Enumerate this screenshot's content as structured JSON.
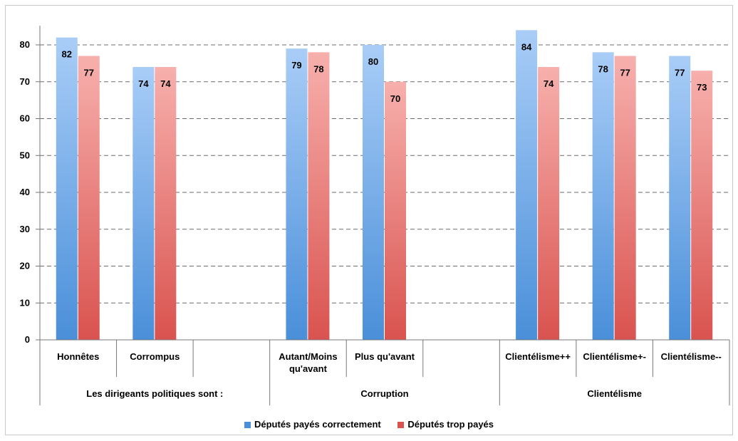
{
  "chart_data": {
    "type": "bar",
    "title": "",
    "xlabel": "",
    "ylabel": "",
    "ylim": [
      0,
      85
    ],
    "yticks": [
      0,
      10,
      20,
      30,
      40,
      50,
      60,
      70,
      80
    ],
    "grid": true,
    "legend_position": "bottom",
    "groups": [
      {
        "label": "Les dirigeants politiques sont :",
        "categories": [
          "Honnêtes",
          "Corrompus",
          ""
        ]
      },
      {
        "label": "Corruption",
        "categories": [
          "Autant/Moins qu'avant",
          "Plus qu'avant",
          ""
        ]
      },
      {
        "label": "Clientélisme",
        "categories": [
          "Clientélisme++",
          "Clientélisme+-",
          "Clientélisme--"
        ]
      }
    ],
    "categories": [
      "Honnêtes",
      "Corrompus",
      "",
      "Autant/Moins qu'avant",
      "Plus qu'avant",
      "",
      "Clientélisme++",
      "Clientélisme+-",
      "Clientélisme--"
    ],
    "series": [
      {
        "name": "Députés payés correctement",
        "color": "#4a8fd9",
        "values": [
          82,
          74,
          null,
          79,
          80,
          null,
          84,
          78,
          77
        ]
      },
      {
        "name": "Députés trop payés",
        "color": "#d9534f",
        "values": [
          77,
          74,
          null,
          78,
          70,
          null,
          74,
          77,
          73
        ]
      }
    ]
  }
}
